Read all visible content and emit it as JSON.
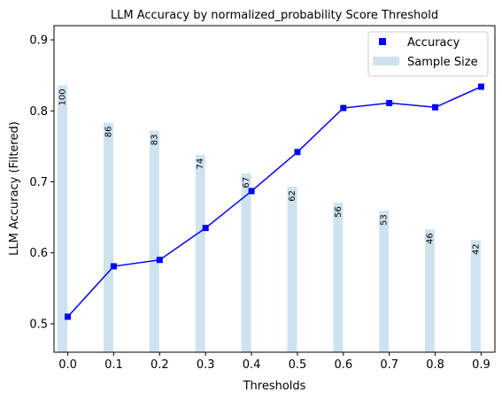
{
  "chart_data": {
    "type": "bar+line",
    "title": "LLM Accuracy by normalized_probability Score Threshold",
    "xlabel": "Thresholds",
    "ylabel": "LLM Accuracy (Filtered)",
    "x": [
      0.0,
      0.1,
      0.2,
      0.3,
      0.4,
      0.5,
      0.6,
      0.7,
      0.8,
      0.9
    ],
    "x_tick_labels": [
      "0.0",
      "0.1",
      "0.2",
      "0.3",
      "0.4",
      "0.5",
      "0.6",
      "0.7",
      "0.8",
      "0.9"
    ],
    "xlim": [
      -0.03,
      0.93
    ],
    "ylim": [
      0.46,
      0.92
    ],
    "y_ticks": [
      0.5,
      0.6,
      0.7,
      0.8,
      0.9
    ],
    "y_tick_labels": [
      "0.5",
      "0.6",
      "0.7",
      "0.8",
      "0.9"
    ],
    "legend_position": "top-right",
    "series": [
      {
        "name": "Accuracy",
        "kind": "line",
        "color": "#0000ff",
        "marker": "square",
        "values": [
          0.51,
          0.581,
          0.59,
          0.635,
          0.687,
          0.742,
          0.804,
          0.811,
          0.805,
          0.834
        ]
      },
      {
        "name": "Sample Size",
        "kind": "bar",
        "color": "#cfe2ef",
        "counts": [
          100,
          86,
          83,
          74,
          67,
          62,
          56,
          53,
          46,
          42
        ],
        "count_labels": [
          "100",
          "86",
          "83",
          "74",
          "67",
          "62",
          "56",
          "53",
          "46",
          "42"
        ]
      }
    ]
  }
}
